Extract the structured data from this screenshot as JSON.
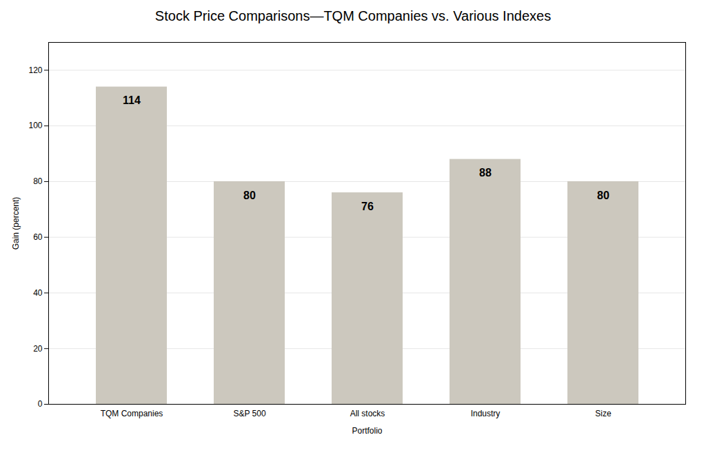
{
  "chart_data": {
    "type": "bar",
    "title": "Stock Price Comparisons—TQM Companies vs. Various Indexes",
    "categories": [
      "TQM Companies",
      "S&P 500",
      "All stocks",
      "Industry",
      "Size"
    ],
    "values": [
      114,
      80,
      76,
      88,
      80
    ],
    "xlabel": "Portfolio",
    "ylabel": "Gain (percent)",
    "color": "#ccc8be",
    "ylim": [
      0,
      130
    ],
    "yticks": [
      0,
      20,
      40,
      60,
      80,
      100,
      120
    ],
    "grid": true,
    "data_labels": true
  }
}
